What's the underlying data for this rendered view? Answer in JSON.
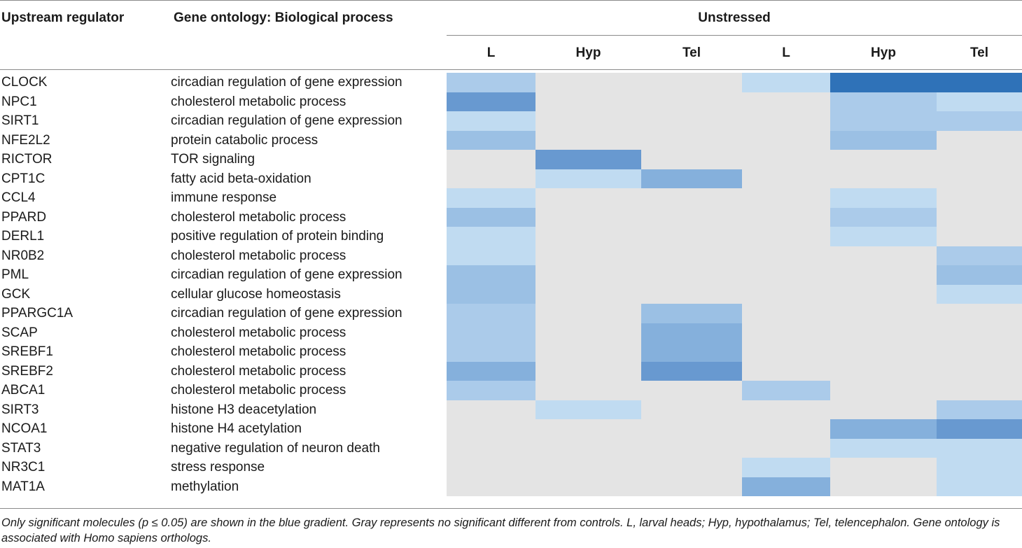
{
  "headers": {
    "regulator": "Upstream regulator",
    "process": "Gene ontology: Biological process",
    "group": "Unstressed",
    "columns": [
      "L",
      "Hyp",
      "Tel",
      "L",
      "Hyp",
      "Tel"
    ]
  },
  "colors": {
    "none": "#e4e4e4",
    "level_1": "#c0dbf1",
    "level_2": "#abcbea",
    "level_3": "#9bc0e4",
    "level_4": "#85b0dc",
    "level_5": "#6899d0",
    "level_6": "#2f72b8"
  },
  "rows": [
    {
      "regulator": "CLOCK",
      "process": "circadian regulation of gene expression",
      "levels": [
        2,
        0,
        0,
        1,
        6,
        6
      ]
    },
    {
      "regulator": "NPC1",
      "process": "cholesterol metabolic process",
      "levels": [
        5,
        0,
        0,
        0,
        2,
        1
      ]
    },
    {
      "regulator": "SIRT1",
      "process": "circadian regulation of gene expression",
      "levels": [
        1,
        0,
        0,
        0,
        2,
        2
      ]
    },
    {
      "regulator": "NFE2L2",
      "process": "protein catabolic process",
      "levels": [
        3,
        0,
        0,
        0,
        3,
        0
      ]
    },
    {
      "regulator": "RICTOR",
      "process": "TOR signaling",
      "levels": [
        0,
        5,
        0,
        0,
        0,
        0
      ]
    },
    {
      "regulator": "CPT1C",
      "process": "fatty acid beta-oxidation",
      "levels": [
        0,
        1,
        4,
        0,
        0,
        0
      ]
    },
    {
      "regulator": "CCL4",
      "process": "immune response",
      "levels": [
        1,
        0,
        0,
        0,
        1,
        0
      ]
    },
    {
      "regulator": "PPARD",
      "process": "cholesterol metabolic process",
      "levels": [
        3,
        0,
        0,
        0,
        2,
        0
      ]
    },
    {
      "regulator": "DERL1",
      "process": "positive regulation of protein binding",
      "levels": [
        1,
        0,
        0,
        0,
        1,
        0
      ]
    },
    {
      "regulator": "NR0B2",
      "process": "cholesterol metabolic process",
      "levels": [
        1,
        0,
        0,
        0,
        0,
        2
      ]
    },
    {
      "regulator": "PML",
      "process": "circadian regulation of gene expression",
      "levels": [
        3,
        0,
        0,
        0,
        0,
        3
      ]
    },
    {
      "regulator": "GCK",
      "process": "cellular glucose homeostasis",
      "levels": [
        3,
        0,
        0,
        0,
        0,
        1
      ]
    },
    {
      "regulator": "PPARGC1A",
      "process": "circadian regulation of gene expression",
      "levels": [
        2,
        0,
        3,
        0,
        0,
        0
      ]
    },
    {
      "regulator": "SCAP",
      "process": "cholesterol metabolic process",
      "levels": [
        2,
        0,
        4,
        0,
        0,
        0
      ]
    },
    {
      "regulator": "SREBF1",
      "process": "cholesterol metabolic process",
      "levels": [
        2,
        0,
        4,
        0,
        0,
        0
      ]
    },
    {
      "regulator": "SREBF2",
      "process": "cholesterol metabolic process",
      "levels": [
        4,
        0,
        5,
        0,
        0,
        0
      ]
    },
    {
      "regulator": "ABCA1",
      "process": "cholesterol metabolic process",
      "levels": [
        2,
        0,
        0,
        2,
        0,
        0
      ]
    },
    {
      "regulator": "SIRT3",
      "process": "histone H3 deacetylation",
      "levels": [
        0,
        1,
        0,
        0,
        0,
        2
      ]
    },
    {
      "regulator": "NCOA1",
      "process": "histone H4 acetylation",
      "levels": [
        0,
        0,
        0,
        0,
        4,
        5
      ]
    },
    {
      "regulator": "STAT3",
      "process": "negative regulation of neuron death",
      "levels": [
        0,
        0,
        0,
        0,
        1,
        1
      ]
    },
    {
      "regulator": "NR3C1",
      "process": "stress response",
      "levels": [
        0,
        0,
        0,
        1,
        0,
        1
      ]
    },
    {
      "regulator": "MAT1A",
      "process": "methylation",
      "levels": [
        0,
        0,
        0,
        4,
        0,
        1
      ]
    }
  ],
  "footnote": "Only significant molecules (p ≤ 0.05) are shown in the blue gradient. Gray represents no significant different from controls. L, larval heads; Hyp, hypothalamus; Tel, telencephalon. Gene ontology is associated with Homo sapiens orthologs."
}
